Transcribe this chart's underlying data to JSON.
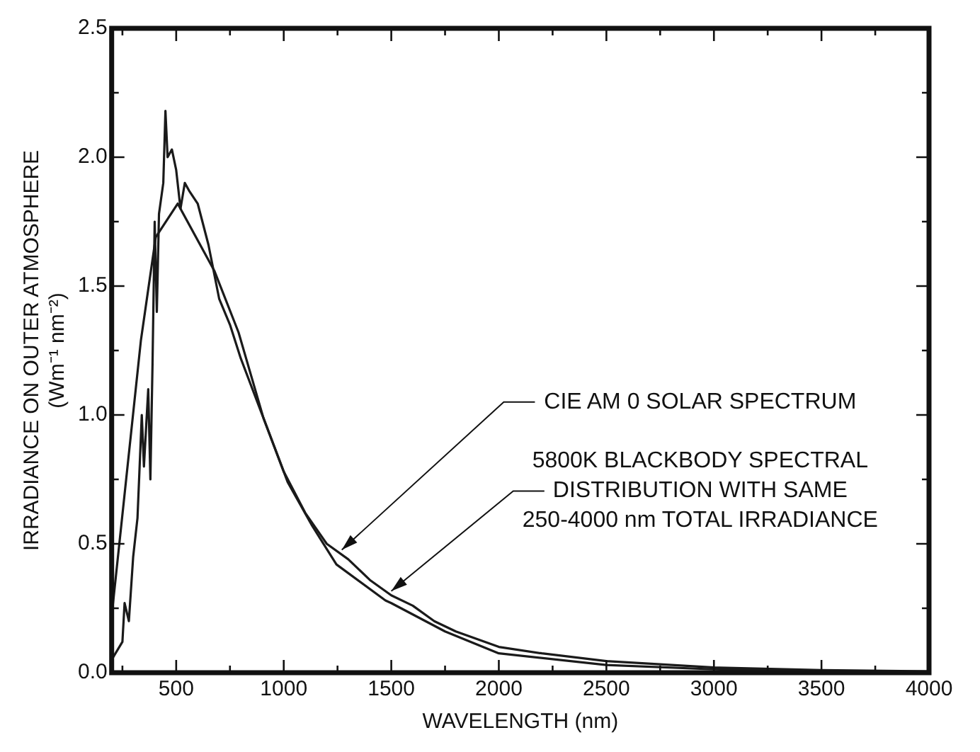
{
  "chart_data": {
    "type": "line",
    "xlabel": "WAVELENGTH (nm)",
    "ylabel": "IRRADIANCE ON OUTER ATMOSPHERE\n(Wm⁻¹ nm⁻²)",
    "xlim": [
      200,
      4000
    ],
    "xticks": [
      {
        "value": 250,
        "label": null
      },
      500,
      {
        "value": 750,
        "label": null
      },
      1000,
      {
        "value": 1250,
        "label": null
      },
      1500,
      {
        "value": 1750,
        "label": null
      },
      2000,
      {
        "value": 2250,
        "label": null
      },
      2500,
      {
        "value": 2750,
        "label": null
      },
      3000,
      {
        "value": 3250,
        "label": null
      },
      3500,
      {
        "value": 3750,
        "label": null
      },
      4000
    ],
    "ylim": [
      0,
      2.5
    ],
    "yticks": [
      {
        "value": 0,
        "label": "0.0"
      },
      {
        "value": 0.25,
        "label": null
      },
      {
        "value": 0.5,
        "label": "0.5"
      },
      {
        "value": 0.75,
        "label": null
      },
      {
        "value": 1,
        "label": "1.0"
      },
      {
        "value": 1.25,
        "label": null
      },
      {
        "value": 1.5,
        "label": "1.5"
      },
      {
        "value": 1.75,
        "label": null
      },
      {
        "value": 2,
        "label": "2.0"
      },
      {
        "value": 2.25,
        "label": null
      },
      {
        "value": 2.5,
        "label": "2.5"
      }
    ],
    "grid": false,
    "legend": false,
    "marker": "none",
    "line_style": "solid",
    "series": [
      {
        "color": "#1a1a1a",
        "x": [
          200,
          250,
          260,
          280,
          300,
          320,
          340,
          350,
          370,
          380,
          390,
          400,
          410,
          420,
          440,
          450,
          460,
          480,
          500,
          520,
          540,
          560,
          600,
          650,
          700,
          750,
          800,
          900,
          1000,
          1100,
          1200,
          1300,
          1400,
          1500,
          1600,
          1700,
          1800,
          2000,
          2200,
          2500,
          3000,
          3500,
          4000
        ],
        "values": [
          0.05,
          0.12,
          0.27,
          0.2,
          0.45,
          0.6,
          1.0,
          0.8,
          1.1,
          0.75,
          1.2,
          1.75,
          1.4,
          1.78,
          1.9,
          2.18,
          2.0,
          2.03,
          1.95,
          1.8,
          1.9,
          1.87,
          1.82,
          1.66,
          1.45,
          1.35,
          1.22,
          1.0,
          0.78,
          0.62,
          0.5,
          0.44,
          0.36,
          0.3,
          0.26,
          0.2,
          0.16,
          0.1,
          0.075,
          0.045,
          0.02,
          0.01,
          0.005
        ]
      },
      {
        "color": "#1a1a1a",
        "x": [
          200,
          336,
          405,
          507,
          677,
          790,
          905,
          1018,
          1132,
          1245,
          1473,
          1500,
          1750,
          2000,
          2500,
          3000,
          3500,
          4000
        ],
        "values": [
          0.22,
          1.29,
          1.69,
          1.82,
          1.56,
          1.32,
          0.99,
          0.74,
          0.57,
          0.42,
          0.28,
          0.27,
          0.16,
          0.075,
          0.03,
          0.013,
          0.006,
          0.003
        ]
      }
    ],
    "annotations": [
      {
        "text": "CIE AM 0 SOLAR SPECTRUM",
        "x": 1270,
        "y": 0.46
      },
      {
        "text": "5800K BLACKBODY SPECTRAL\nDISTRIBUTION WITH SAME\n250-4000 nm TOTAL IRRADIANCE",
        "x": 1500,
        "y": 0.3
      }
    ]
  }
}
